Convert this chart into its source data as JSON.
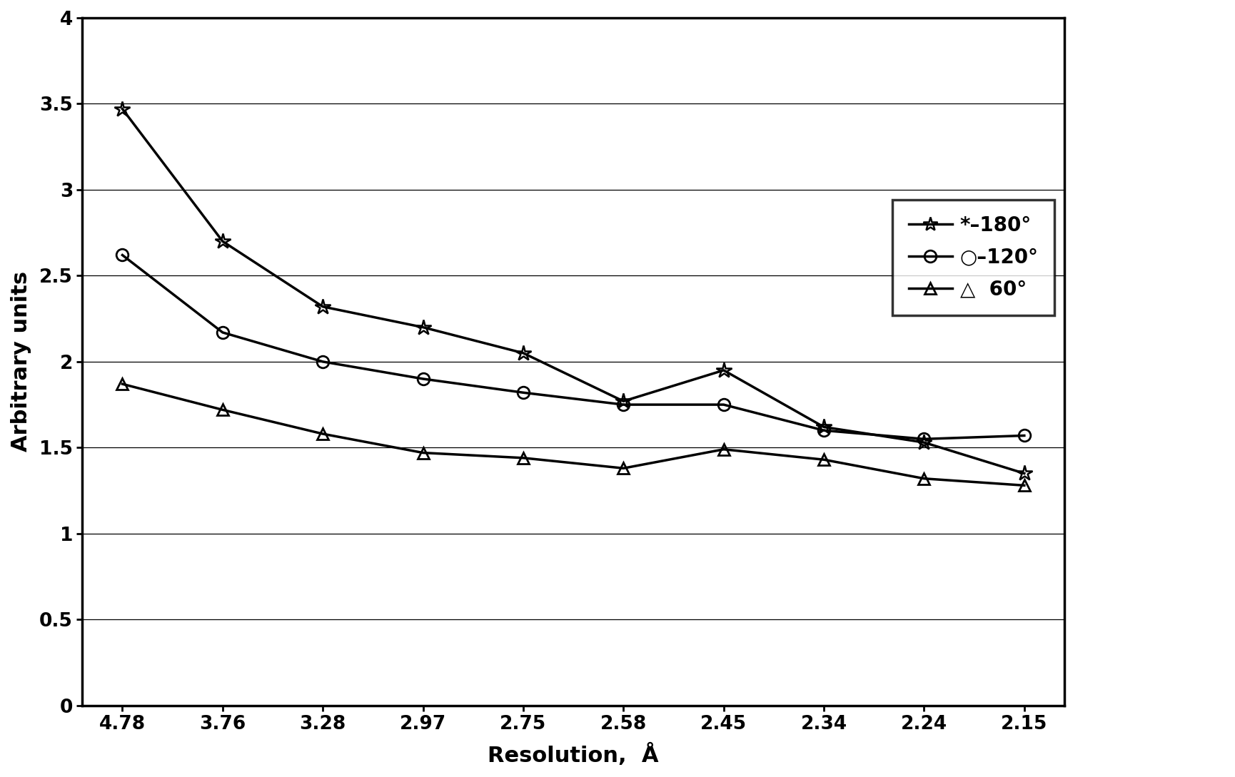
{
  "x_labels": [
    "4.78",
    "3.76",
    "3.28",
    "2.97",
    "2.75",
    "2.58",
    "2.45",
    "2.34",
    "2.24",
    "2.15"
  ],
  "series_180": [
    3.47,
    2.7,
    2.32,
    2.2,
    2.05,
    1.77,
    1.95,
    1.62,
    1.53,
    1.35
  ],
  "series_120": [
    2.62,
    2.17,
    2.0,
    1.9,
    1.82,
    1.75,
    1.75,
    1.6,
    1.55,
    1.57
  ],
  "series_60": [
    1.87,
    1.72,
    1.58,
    1.47,
    1.44,
    1.38,
    1.49,
    1.43,
    1.32,
    1.28
  ],
  "ylabel": "Arbitrary units",
  "xlabel": "Resolution,  Å",
  "ylim": [
    0,
    4.0
  ],
  "yticks": [
    0,
    0.5,
    1.0,
    1.5,
    2.0,
    2.5,
    3.0,
    3.5,
    4.0
  ],
  "line_color": "#000000",
  "background_color": "#ffffff",
  "label_fontsize": 22,
  "tick_fontsize": 19,
  "legend_fontsize": 20,
  "linewidth": 2.5,
  "markersize": 12
}
